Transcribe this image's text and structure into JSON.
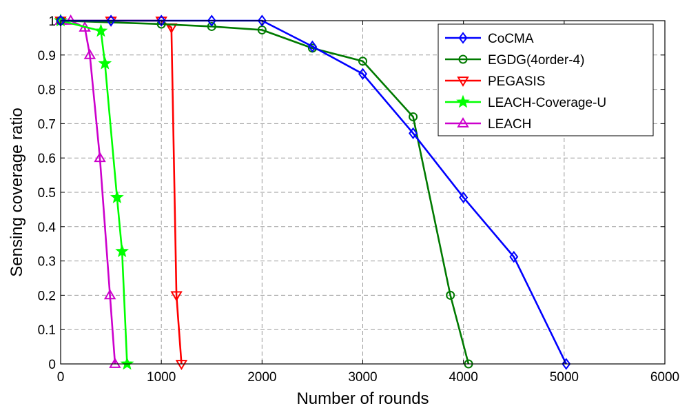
{
  "chart_data": {
    "type": "line",
    "xlabel": "Number of rounds",
    "ylabel": "Sensing coverage ratio",
    "xlim": [
      0,
      6000
    ],
    "ylim": [
      0,
      1
    ],
    "x_ticks": [
      "0",
      "1000",
      "2000",
      "3000",
      "4000",
      "5000",
      "6000"
    ],
    "y_ticks": [
      "0",
      "0.1",
      "0.2",
      "0.3",
      "0.4",
      "0.5",
      "0.6",
      "0.7",
      "0.8",
      "0.9",
      "1"
    ],
    "grid": true,
    "legend_position": "top-right",
    "series": [
      {
        "name": "CoCMA",
        "color": "#0000ff",
        "marker": "diamond",
        "x": [
          0,
          500,
          1000,
          1500,
          2000,
          2500,
          3000,
          3500,
          4000,
          4500,
          5020
        ],
        "y": [
          1,
          1,
          1,
          1,
          1,
          0.925,
          0.845,
          0.672,
          0.485,
          0.312,
          0
        ]
      },
      {
        "name": "EGDG(4order-4)",
        "color": "#007a00",
        "marker": "circle",
        "x": [
          0,
          1000,
          1500,
          2000,
          2500,
          3000,
          3500,
          3870,
          4050
        ],
        "y": [
          1,
          0.99,
          0.983,
          0.973,
          0.92,
          0.882,
          0.72,
          0.2,
          0
        ]
      },
      {
        "name": "PEGASIS",
        "color": "#ff0000",
        "marker": "triangle-down",
        "x": [
          0,
          500,
          1000,
          1100,
          1150,
          1200
        ],
        "y": [
          1,
          1,
          1,
          0.98,
          0.2,
          0
        ]
      },
      {
        "name": "LEACH-Coverage-U",
        "color": "#00ff00",
        "marker": "star",
        "x": [
          0,
          400,
          440,
          560,
          610,
          660
        ],
        "y": [
          1,
          0.97,
          0.875,
          0.485,
          0.328,
          0
        ]
      },
      {
        "name": "LEACH",
        "color": "#cc00cc",
        "marker": "triangle-up",
        "x": [
          0,
          100,
          240,
          290,
          390,
          490,
          540
        ],
        "y": [
          1,
          1,
          0.98,
          0.9,
          0.6,
          0.2,
          0
        ]
      }
    ]
  }
}
